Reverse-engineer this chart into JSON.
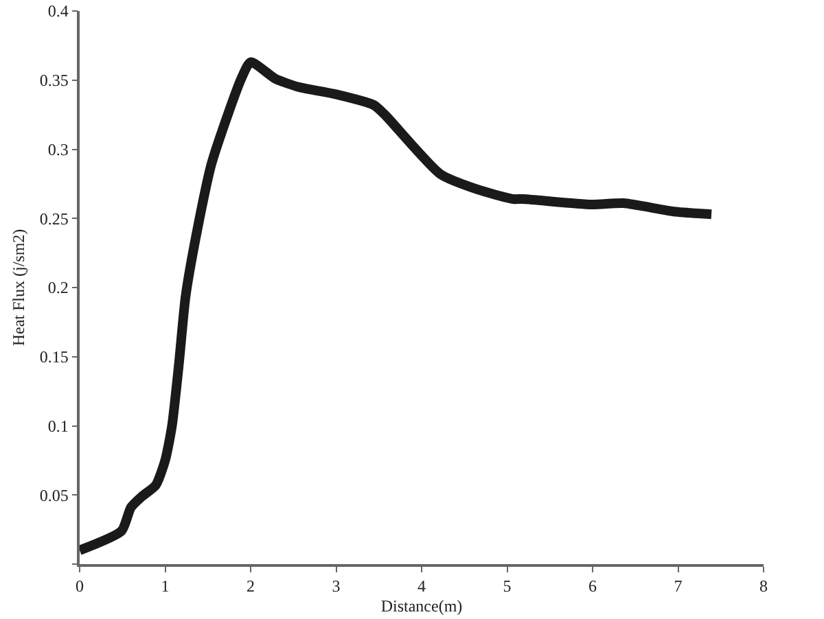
{
  "chart_data": {
    "type": "line",
    "xlabel": "Distance(m)",
    "ylabel": "Heat Flux (j/sm2)",
    "x": [
      0,
      0.49,
      0.6,
      0.73,
      0.89,
      1.0,
      1.08,
      1.16,
      1.24,
      1.38,
      1.54,
      1.75,
      1.89,
      2.0,
      2.29,
      2.56,
      2.98,
      3.44,
      3.57,
      4.22,
      4.65,
      5.07,
      5.18,
      5.99,
      6.36,
      6.95,
      7.39
    ],
    "series": [
      {
        "color": "#1a1a1a",
        "values": [
          0.01,
          0.024,
          0.041,
          0.049,
          0.057,
          0.075,
          0.1,
          0.144,
          0.194,
          0.243,
          0.289,
          0.328,
          0.351,
          0.363,
          0.351,
          0.345,
          0.34,
          0.332,
          0.325,
          0.282,
          0.271,
          0.264,
          0.264,
          0.26,
          0.261,
          0.255,
          0.253
        ]
      }
    ],
    "xlim": [
      0,
      8
    ],
    "xticks": [
      0,
      1,
      2,
      3,
      4,
      5,
      6,
      7,
      8
    ],
    "ylim": [
      0,
      0.4
    ],
    "yticks": [
      {
        "value": 0,
        "label": null
      },
      0.05,
      0.1,
      0.15,
      0.2,
      0.25,
      0.3,
      0.35,
      0.4
    ],
    "grid": false,
    "marker": "none",
    "line_style": "solid"
  }
}
